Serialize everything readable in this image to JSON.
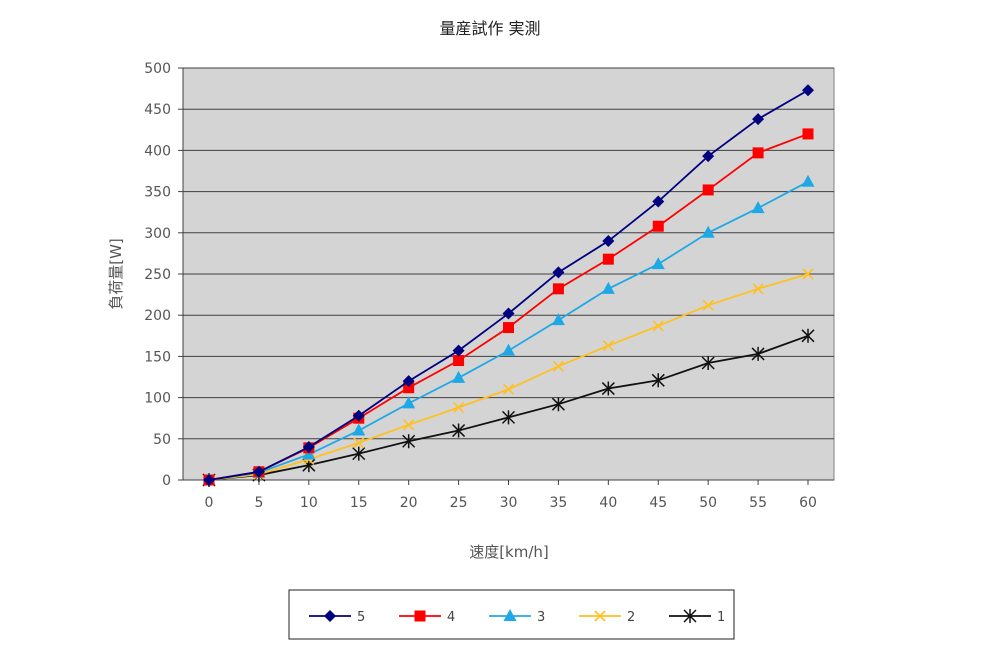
{
  "chart_data": {
    "type": "line",
    "title": "量産試作 実測",
    "xlabel": "速度[km/h]",
    "ylabel": "負荷量[W]",
    "x": [
      0,
      5,
      10,
      15,
      20,
      25,
      30,
      35,
      40,
      45,
      50,
      55,
      60
    ],
    "x_ticks": [
      "0",
      "5",
      "10",
      "15",
      "20",
      "25",
      "30",
      "35",
      "40",
      "45",
      "50",
      "55",
      "60"
    ],
    "ylim": [
      0,
      500
    ],
    "y_ticks": [
      "0",
      "50",
      "100",
      "150",
      "200",
      "250",
      "300",
      "350",
      "400",
      "450",
      "500"
    ],
    "grid": "horizontal",
    "legend_position": "bottom",
    "plot_background": "#d4d4d4",
    "series": [
      {
        "name": "5",
        "color": "#000080",
        "marker": "diamond",
        "values": [
          0,
          10,
          40,
          78,
          120,
          157,
          202,
          252,
          290,
          338,
          393,
          438,
          473
        ]
      },
      {
        "name": "4",
        "color": "#ff0000",
        "marker": "square",
        "values": [
          0,
          10,
          39,
          75,
          112,
          145,
          185,
          232,
          268,
          308,
          352,
          397,
          420
        ]
      },
      {
        "name": "3",
        "color": "#1ea9e6",
        "marker": "triangle",
        "values": [
          0,
          9,
          31,
          60,
          93,
          124,
          157,
          194,
          232,
          262,
          300,
          330,
          362
        ]
      },
      {
        "name": "2",
        "color": "#ffc020",
        "marker": "x",
        "values": [
          0,
          7,
          25,
          45,
          67,
          88,
          110,
          138,
          163,
          187,
          212,
          232,
          250
        ]
      },
      {
        "name": "1",
        "color": "#111111",
        "marker": "asterisk",
        "values": [
          0,
          6,
          18,
          32,
          47,
          60,
          76,
          92,
          111,
          121,
          142,
          153,
          175
        ]
      }
    ]
  }
}
